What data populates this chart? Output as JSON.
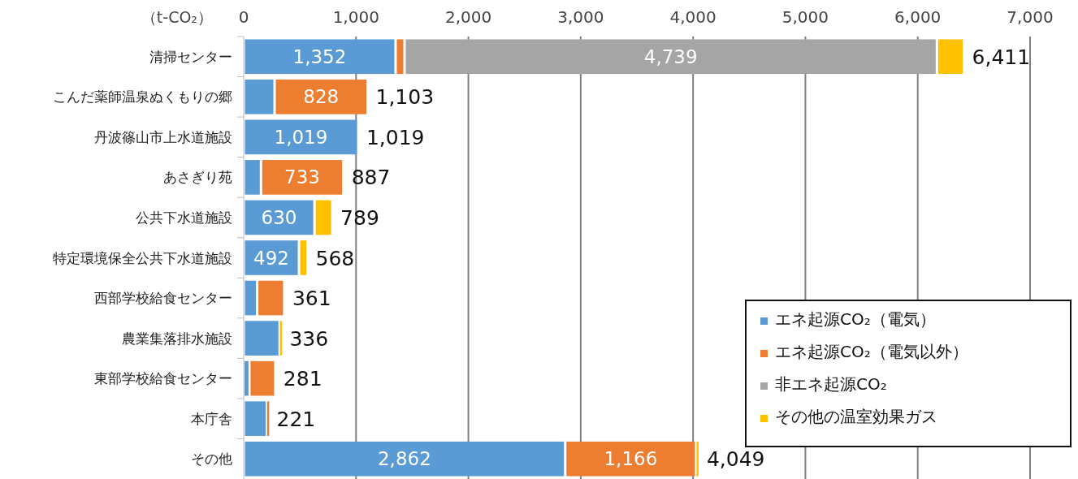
{
  "chart_data": {
    "type": "bar",
    "orientation": "horizontal",
    "stacked": true,
    "xlabel": "（t-CO₂）",
    "categories": [
      "清掃センター",
      "こんだ薬師温泉ぬくもりの郷",
      "丹波篠山市上水道施設",
      "あさぎり苑",
      "公共下水道施設",
      "特定環境保全公共下水道施設",
      "西部学校給食センター",
      "農業集落排水施設",
      "東部学校給食センター",
      "本庁舎",
      "その他"
    ],
    "series": [
      {
        "name": "エネ起源CO₂（電気）",
        "color": "#5b9bd5",
        "values": [
          1352,
          275,
          1019,
          154,
          630,
          492,
          120,
          320,
          50,
          206,
          2862
        ],
        "value_labels": [
          "1,352",
          null,
          "1,019",
          null,
          "630",
          "492",
          null,
          null,
          null,
          null,
          "2,862"
        ]
      },
      {
        "name": "エネ起源CO₂（電気以外）",
        "color": "#ed7d31",
        "values": [
          80,
          828,
          0,
          733,
          0,
          0,
          241,
          0,
          231,
          15,
          1166
        ],
        "value_labels": [
          null,
          "828",
          null,
          "733",
          null,
          null,
          null,
          null,
          null,
          null,
          "1,166"
        ]
      },
      {
        "name": "非エネ起源CO₂",
        "color": "#a5a5a5",
        "values": [
          4739,
          0,
          0,
          0,
          0,
          0,
          0,
          0,
          0,
          0,
          0
        ],
        "value_labels": [
          "4,739",
          null,
          null,
          null,
          null,
          null,
          null,
          null,
          null,
          null,
          null
        ]
      },
      {
        "name": "その他の温室効果ガス",
        "color": "#ffc000",
        "values": [
          240,
          0,
          0,
          0,
          159,
          76,
          0,
          16,
          0,
          0,
          21
        ]
      }
    ],
    "totals": [
      "6,411",
      "1,103",
      "1,019",
      "887",
      "789",
      "568",
      "361",
      "336",
      "281",
      "221",
      "4,049"
    ],
    "xlim": [
      0,
      7000
    ],
    "xticks": [
      {
        "value": 0,
        "label": "0"
      },
      {
        "value": 1000,
        "label": "1,000"
      },
      {
        "value": 2000,
        "label": "2,000"
      },
      {
        "value": 3000,
        "label": "3,000"
      },
      {
        "value": 4000,
        "label": "4,000"
      },
      {
        "value": 5000,
        "label": "5,000"
      },
      {
        "value": 6000,
        "label": "6,000"
      },
      {
        "value": 7000,
        "label": "7,000"
      }
    ],
    "grid": "x",
    "legend": "bottom right"
  }
}
